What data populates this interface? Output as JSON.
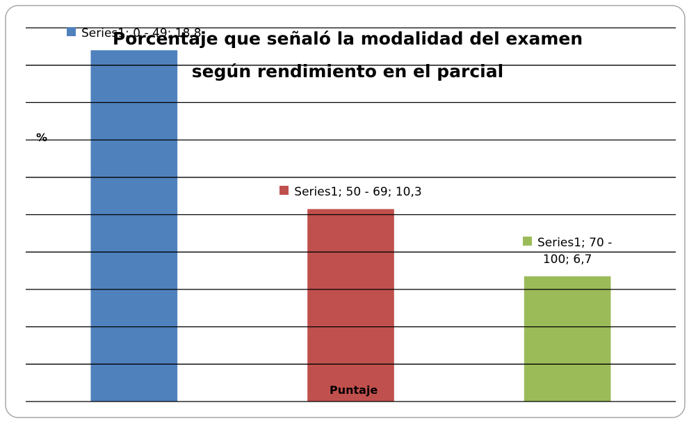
{
  "chart_data": {
    "type": "bar",
    "title": "Porcentaje que señaló la modalidad del examen\nsegún rendimiento en el parcial",
    "xlabel": "Puntaje",
    "ylabel": "%",
    "categories": [
      null,
      null,
      null
    ],
    "values": [
      18.8,
      10.3,
      6.7
    ],
    "value_labels": [
      "Series1; 0 - 49; 18,8",
      "Series1; 50 - 69; 10,3",
      "Series1; 70 - 100; 6,7"
    ],
    "colors": [
      "#4f81bd",
      "#c0504d",
      "#9bbb59"
    ],
    "ylim": [
      0,
      20
    ],
    "yticks": [
      0,
      2,
      4,
      6,
      8,
      10,
      12,
      14,
      16,
      18,
      20
    ],
    "grid": true
  }
}
